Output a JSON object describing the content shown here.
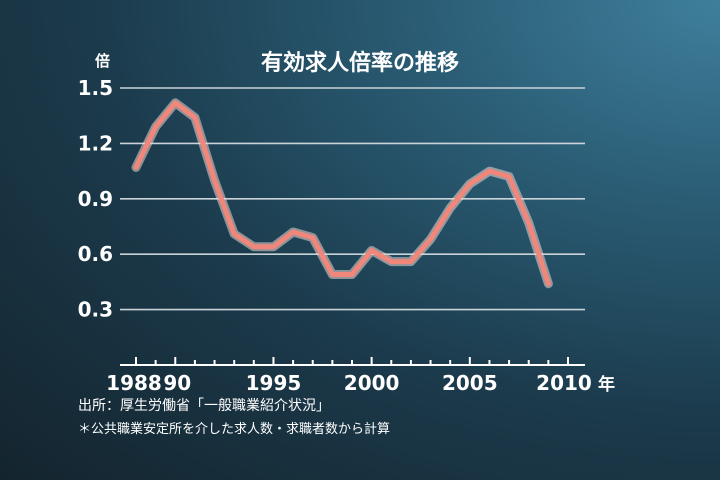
{
  "chart_data": {
    "type": "line",
    "title": "有効求人倍率の推移",
    "ylabel": "倍",
    "xunit": "年",
    "ylim": [
      0,
      1.5
    ],
    "yticks": [
      "1.5",
      "1.2",
      "0.9",
      "0.6",
      "0.3"
    ],
    "xticks": [
      "1988",
      "90",
      "1995",
      "2000",
      "2005",
      "2010"
    ],
    "grid": true,
    "line_color": "#f0877a",
    "x": [
      1988,
      1989,
      1990,
      1991,
      1992,
      1993,
      1994,
      1995,
      1996,
      1997,
      1998,
      1999,
      2000,
      2001,
      2002,
      2003,
      2004,
      2005,
      2006,
      2007,
      2008,
      2009
    ],
    "values": [
      1.07,
      1.29,
      1.42,
      1.34,
      1.0,
      0.71,
      0.64,
      0.64,
      0.72,
      0.69,
      0.49,
      0.49,
      0.62,
      0.56,
      0.56,
      0.68,
      0.85,
      0.98,
      1.05,
      1.02,
      0.77,
      0.44
    ]
  },
  "source": "出所：厚生労働省「一般職業紹介状況」",
  "footnote": "＊公共職業安定所を介した求人数・求職者数から計算"
}
